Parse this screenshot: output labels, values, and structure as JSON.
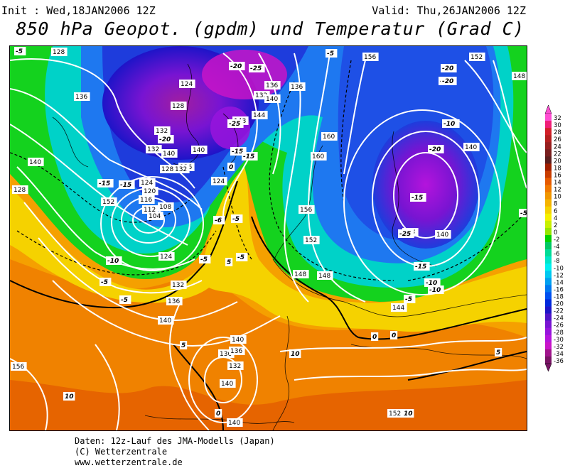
{
  "header": {
    "init": "Init : Wed,18JAN2006 12Z",
    "valid": "Valid: Thu,26JAN2006 12Z",
    "title": "850 hPa Geopot. (gpdm) und Temperatur (Grad C)"
  },
  "footer": {
    "line1": "Daten: 12z-Lauf des JMA-Modells (Japan)",
    "line2": "(C) Wetterzentrale",
    "line3": "www.wetterzentrale.de"
  },
  "legend": {
    "values": [
      "32",
      "30",
      "28",
      "26",
      "24",
      "22",
      "20",
      "18",
      "16",
      "14",
      "12",
      "10",
      "8",
      "6",
      "4",
      "2",
      "0",
      "-2",
      "-4",
      "-6",
      "-8",
      "-10",
      "-12",
      "-14",
      "-16",
      "-18",
      "-20",
      "-22",
      "-24",
      "-26",
      "-28",
      "-30",
      "-32",
      "-34",
      "-36"
    ],
    "colors": [
      "#ff4dd2",
      "#f01e78",
      "#d21e28",
      "#b41e1e",
      "#961e1e",
      "#781e1e",
      "#5a1e1e",
      "#a01e00",
      "#c83c00",
      "#e65a00",
      "#f07800",
      "#f09600",
      "#f5b400",
      "#f5d200",
      "#f5f000",
      "#c8f000",
      "#96e600",
      "#00d200",
      "#00c864",
      "#00dc96",
      "#00e6c8",
      "#00f0f0",
      "#00c8f0",
      "#00a0f0",
      "#0078f0",
      "#0050f0",
      "#0028dc",
      "#1e14c8",
      "#5014c8",
      "#7814d2",
      "#9614dc",
      "#b414dc",
      "#c814c8",
      "#a0148c",
      "#781464"
    ]
  },
  "map": {
    "geopotential_labels": [
      "128",
      "136",
      "124",
      "132",
      "128",
      "140",
      "132",
      "136",
      "136",
      "128",
      "124",
      "120",
      "116",
      "112",
      "108",
      "104",
      "124",
      "132",
      "140",
      "140",
      "148",
      "132",
      "136",
      "140",
      "144",
      "136",
      "140",
      "128",
      "124",
      "132",
      "136",
      "140",
      "140",
      "136",
      "132",
      "156",
      "152",
      "148",
      "160",
      "160",
      "156",
      "152",
      "148",
      "144",
      "144",
      "140",
      "140",
      "148",
      "152",
      "140",
      "156",
      "152"
    ],
    "temperature_labels": [
      "-5",
      "-15",
      "-20",
      "-25",
      "-5",
      "-20",
      "-25",
      "-20",
      "-15",
      "-15",
      "-20",
      "-10",
      "-15",
      "-5",
      "-10",
      "-5",
      "-5",
      "0",
      "-6",
      "-5",
      "-15",
      "-20",
      "-25",
      "-25",
      "-20",
      "-5",
      "-10",
      "-15",
      "-5",
      "0",
      "10",
      "5",
      "0",
      "5",
      "10",
      "10",
      "5",
      "0",
      "-5",
      "-10"
    ]
  }
}
